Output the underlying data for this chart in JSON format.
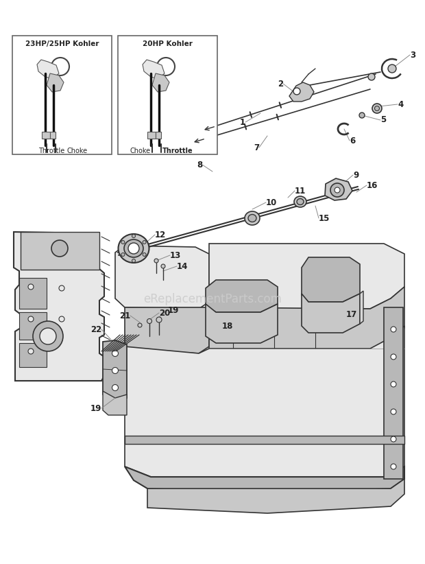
{
  "bg_color": "#ffffff",
  "fig_width": 6.2,
  "fig_height": 8.22,
  "dpi": 100,
  "watermark": "eReplacementParts.com",
  "lc": "#555555",
  "lcd": "#333333",
  "lfs": 8.5,
  "box1_title": "23HP/25HP Kohler",
  "box2_title": "20HP Kohler",
  "box1_label_left": "Throttle",
  "box1_label_right": "Choke",
  "box2_label_left": "Choke",
  "box2_label_right": "Throttle"
}
